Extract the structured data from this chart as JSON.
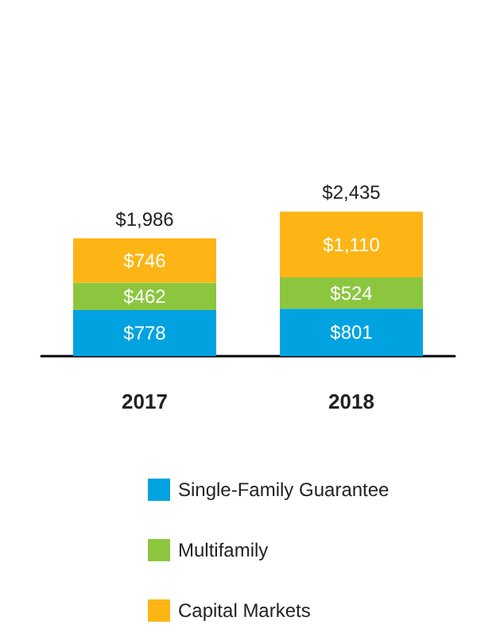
{
  "chart_data": {
    "type": "bar",
    "stacked": true,
    "categories": [
      "2017",
      "2018"
    ],
    "series": [
      {
        "name": "Single-Family Guarantee",
        "color": "#00a3e0",
        "values": [
          778,
          801
        ],
        "value_labels": [
          "$778",
          "$801"
        ]
      },
      {
        "name": "Multifamily",
        "color": "#8cc63f",
        "values": [
          462,
          524
        ],
        "value_labels": [
          "$462",
          "$524"
        ]
      },
      {
        "name": "Capital Markets",
        "color": "#fdb515",
        "values": [
          746,
          1110
        ],
        "value_labels": [
          "$746",
          "$1,110"
        ]
      }
    ],
    "totals": [
      "$1,986",
      "$2,435"
    ],
    "legend": "bottom"
  }
}
